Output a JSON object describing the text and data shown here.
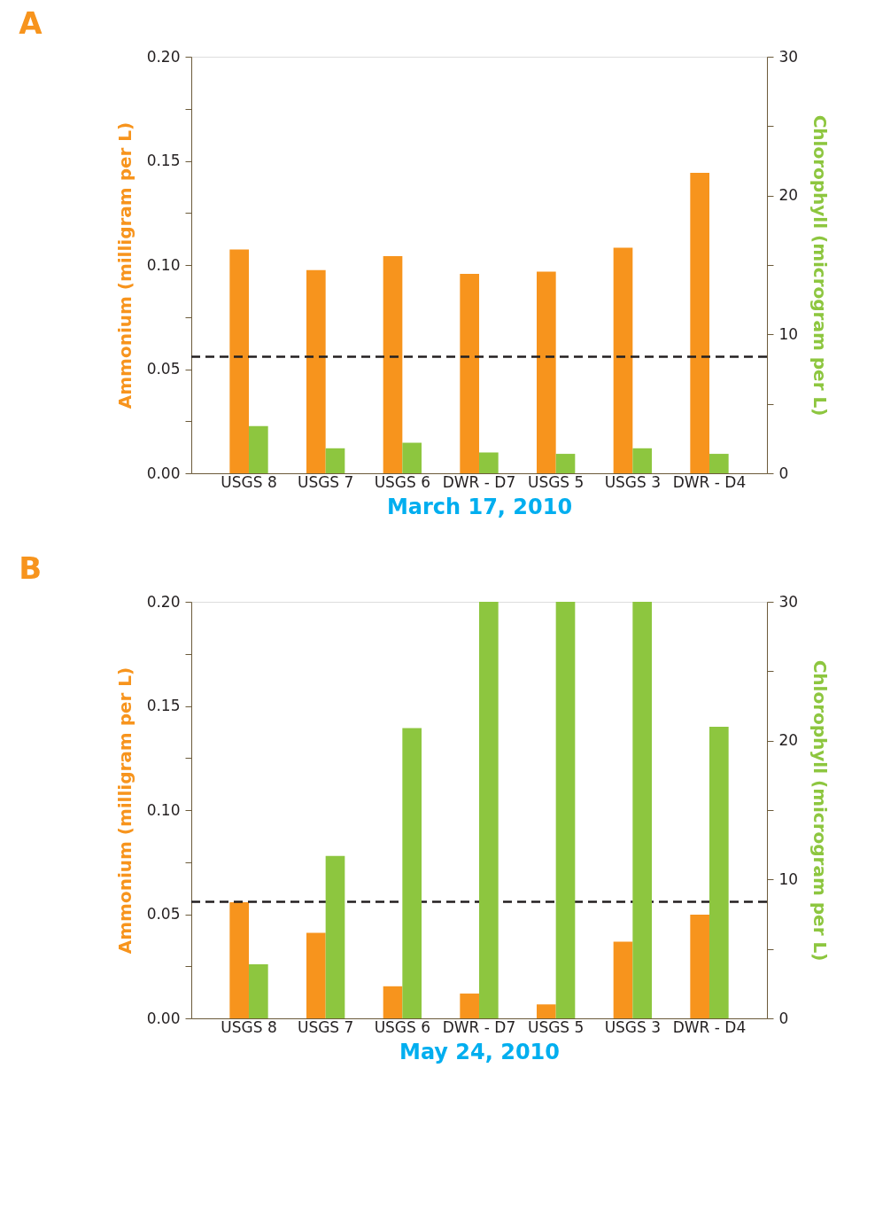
{
  "chart_data": [
    {
      "type": "bar",
      "title": "A",
      "xlabel": "March 17, 2010",
      "ylabel": "Ammonium (milligram per L)",
      "y2label": "Chlorophyll (microgram per L)",
      "categories": [
        "USGS 8",
        "USGS 7",
        "USGS 6",
        "DWR - D7",
        "USGS 5",
        "USGS 3",
        "DWR - D4"
      ],
      "series": [
        {
          "color": "#f7941d",
          "values": [
            0.1075,
            0.0976,
            0.1043,
            0.0957,
            0.0968,
            0.1083,
            0.1443
          ]
        },
        {
          "color": "#8dc63f",
          "axis": "y2",
          "values": [
            3.4,
            1.8,
            2.2,
            1.5,
            1.4,
            1.8,
            1.4
          ]
        }
      ],
      "ylim": [
        0,
        0.2
      ],
      "yticks": [
        {
          "value": 0,
          "label": "0.00"
        },
        {
          "value": 0.025,
          "label": null
        },
        {
          "value": 0.05,
          "label": "0.05"
        },
        {
          "value": 0.075,
          "label": null
        },
        {
          "value": 0.1,
          "label": "0.10"
        },
        {
          "value": 0.125,
          "label": null
        },
        {
          "value": 0.15,
          "label": "0.15"
        },
        {
          "value": 0.175,
          "label": null
        },
        {
          "value": 0.2,
          "label": "0.20"
        }
      ],
      "y2lim": [
        0,
        30
      ],
      "y2ticks": [
        0,
        {
          "value": 5,
          "label": null
        },
        10,
        {
          "value": 15,
          "label": null
        },
        20,
        {
          "value": 25,
          "label": null
        },
        30
      ],
      "ref_lines": [
        {
          "axis": "y",
          "value": 0.056,
          "color": "#231f20",
          "line_style": "dashed"
        }
      ]
    },
    {
      "type": "bar",
      "title": "B",
      "xlabel": "May 24, 2010",
      "ylabel": "Ammonium (milligram per L)",
      "y2label": "Chlorophyll (microgram per L)",
      "categories": [
        "USGS 8",
        "USGS 7",
        "USGS 6",
        "DWR - D7",
        "USGS 5",
        "USGS 3",
        "DWR - D4"
      ],
      "series": [
        {
          "color": "#f7941d",
          "values": [
            0.0557,
            0.0411,
            0.0154,
            0.0119,
            0.0067,
            0.0368,
            0.0498
          ]
        },
        {
          "color": "#8dc63f",
          "axis": "y2",
          "values": [
            3.9,
            11.7,
            20.9,
            30,
            30,
            30,
            21.0
          ]
        }
      ],
      "ylim": [
        0,
        0.2
      ],
      "yticks": [
        {
          "value": 0,
          "label": "0.00"
        },
        {
          "value": 0.025,
          "label": null
        },
        {
          "value": 0.05,
          "label": "0.05"
        },
        {
          "value": 0.075,
          "label": null
        },
        {
          "value": 0.1,
          "label": "0.10"
        },
        {
          "value": 0.125,
          "label": null
        },
        {
          "value": 0.15,
          "label": "0.15"
        },
        {
          "value": 0.175,
          "label": null
        },
        {
          "value": 0.2,
          "label": "0.20"
        }
      ],
      "y2lim": [
        0,
        30
      ],
      "y2ticks": [
        0,
        {
          "value": 5,
          "label": null
        },
        10,
        {
          "value": 15,
          "label": null
        },
        20,
        {
          "value": 25,
          "label": null
        },
        30
      ],
      "ref_lines": [
        {
          "axis": "y",
          "value": 0.056,
          "color": "#231f20",
          "line_style": "dashed"
        }
      ]
    }
  ]
}
